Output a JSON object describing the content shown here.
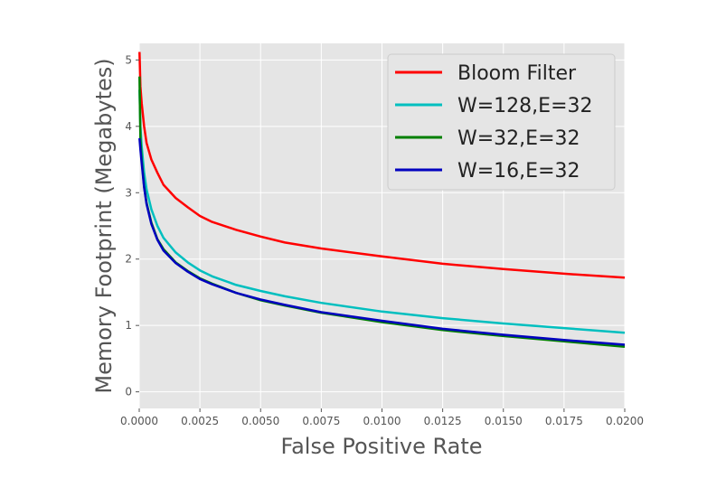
{
  "chart_data": {
    "type": "line",
    "xlabel": "False Positive Rate",
    "ylabel": "Memory Footprint (Megabytes)",
    "xlim": [
      0,
      0.02
    ],
    "ylim": [
      -0.25,
      5.25
    ],
    "xticks": [
      "0.0000",
      "0.0025",
      "0.0050",
      "0.0075",
      "0.0100",
      "0.0125",
      "0.0150",
      "0.0175",
      "0.0200"
    ],
    "yticks": [
      "0",
      "1",
      "2",
      "3",
      "4",
      "5"
    ],
    "grid": true,
    "legend": {
      "placement": "top-right"
    },
    "series": [
      {
        "name": "Bloom Filter",
        "color": "#ff0000",
        "points": [
          [
            1e-05,
            5.12
          ],
          [
            5e-05,
            4.6
          ],
          [
            0.0001,
            4.35
          ],
          [
            0.0002,
            4.0
          ],
          [
            0.0003,
            3.75
          ],
          [
            0.0005,
            3.5
          ],
          [
            0.00075,
            3.3
          ],
          [
            0.001,
            3.12
          ],
          [
            0.0015,
            2.92
          ],
          [
            0.002,
            2.78
          ],
          [
            0.0025,
            2.65
          ],
          [
            0.003,
            2.56
          ],
          [
            0.004,
            2.44
          ],
          [
            0.005,
            2.34
          ],
          [
            0.006,
            2.25
          ],
          [
            0.0075,
            2.16
          ],
          [
            0.01,
            2.04
          ],
          [
            0.0125,
            1.93
          ],
          [
            0.015,
            1.85
          ],
          [
            0.0175,
            1.78
          ],
          [
            0.02,
            1.72
          ]
        ]
      },
      {
        "name": "W=128,E=32",
        "color": "#00bfbf",
        "points": [
          [
            1e-05,
            4.55
          ],
          [
            5e-05,
            4.0
          ],
          [
            0.0001,
            3.7
          ],
          [
            0.0002,
            3.3
          ],
          [
            0.0003,
            3.05
          ],
          [
            0.0005,
            2.75
          ],
          [
            0.00075,
            2.5
          ],
          [
            0.001,
            2.32
          ],
          [
            0.0015,
            2.1
          ],
          [
            0.002,
            1.95
          ],
          [
            0.0025,
            1.83
          ],
          [
            0.003,
            1.74
          ],
          [
            0.004,
            1.61
          ],
          [
            0.005,
            1.52
          ],
          [
            0.006,
            1.44
          ],
          [
            0.0075,
            1.34
          ],
          [
            0.01,
            1.21
          ],
          [
            0.0125,
            1.11
          ],
          [
            0.015,
            1.03
          ],
          [
            0.0175,
            0.96
          ],
          [
            0.02,
            0.89
          ]
        ]
      },
      {
        "name": "W=32,E=32",
        "color": "#008000",
        "points": [
          [
            1e-05,
            4.75
          ],
          [
            5e-05,
            3.8
          ],
          [
            0.0001,
            3.5
          ],
          [
            0.0002,
            3.1
          ],
          [
            0.0003,
            2.85
          ],
          [
            0.0005,
            2.55
          ],
          [
            0.00075,
            2.3
          ],
          [
            0.001,
            2.15
          ],
          [
            0.0015,
            1.95
          ],
          [
            0.002,
            1.82
          ],
          [
            0.0025,
            1.71
          ],
          [
            0.003,
            1.63
          ],
          [
            0.004,
            1.49
          ],
          [
            0.005,
            1.38
          ],
          [
            0.006,
            1.3
          ],
          [
            0.0075,
            1.19
          ],
          [
            0.01,
            1.05
          ],
          [
            0.0125,
            0.93
          ],
          [
            0.015,
            0.84
          ],
          [
            0.0175,
            0.76
          ],
          [
            0.02,
            0.68
          ]
        ]
      },
      {
        "name": "W=16,E=32",
        "color": "#0000bf",
        "points": [
          [
            1e-05,
            3.82
          ],
          [
            5e-05,
            3.65
          ],
          [
            0.0001,
            3.45
          ],
          [
            0.0002,
            3.08
          ],
          [
            0.0003,
            2.83
          ],
          [
            0.0005,
            2.53
          ],
          [
            0.00075,
            2.29
          ],
          [
            0.001,
            2.13
          ],
          [
            0.0015,
            1.94
          ],
          [
            0.002,
            1.81
          ],
          [
            0.0025,
            1.7
          ],
          [
            0.003,
            1.62
          ],
          [
            0.004,
            1.49
          ],
          [
            0.005,
            1.39
          ],
          [
            0.006,
            1.31
          ],
          [
            0.0075,
            1.2
          ],
          [
            0.01,
            1.07
          ],
          [
            0.0125,
            0.95
          ],
          [
            0.015,
            0.86
          ],
          [
            0.0175,
            0.78
          ],
          [
            0.02,
            0.71
          ]
        ]
      }
    ]
  }
}
